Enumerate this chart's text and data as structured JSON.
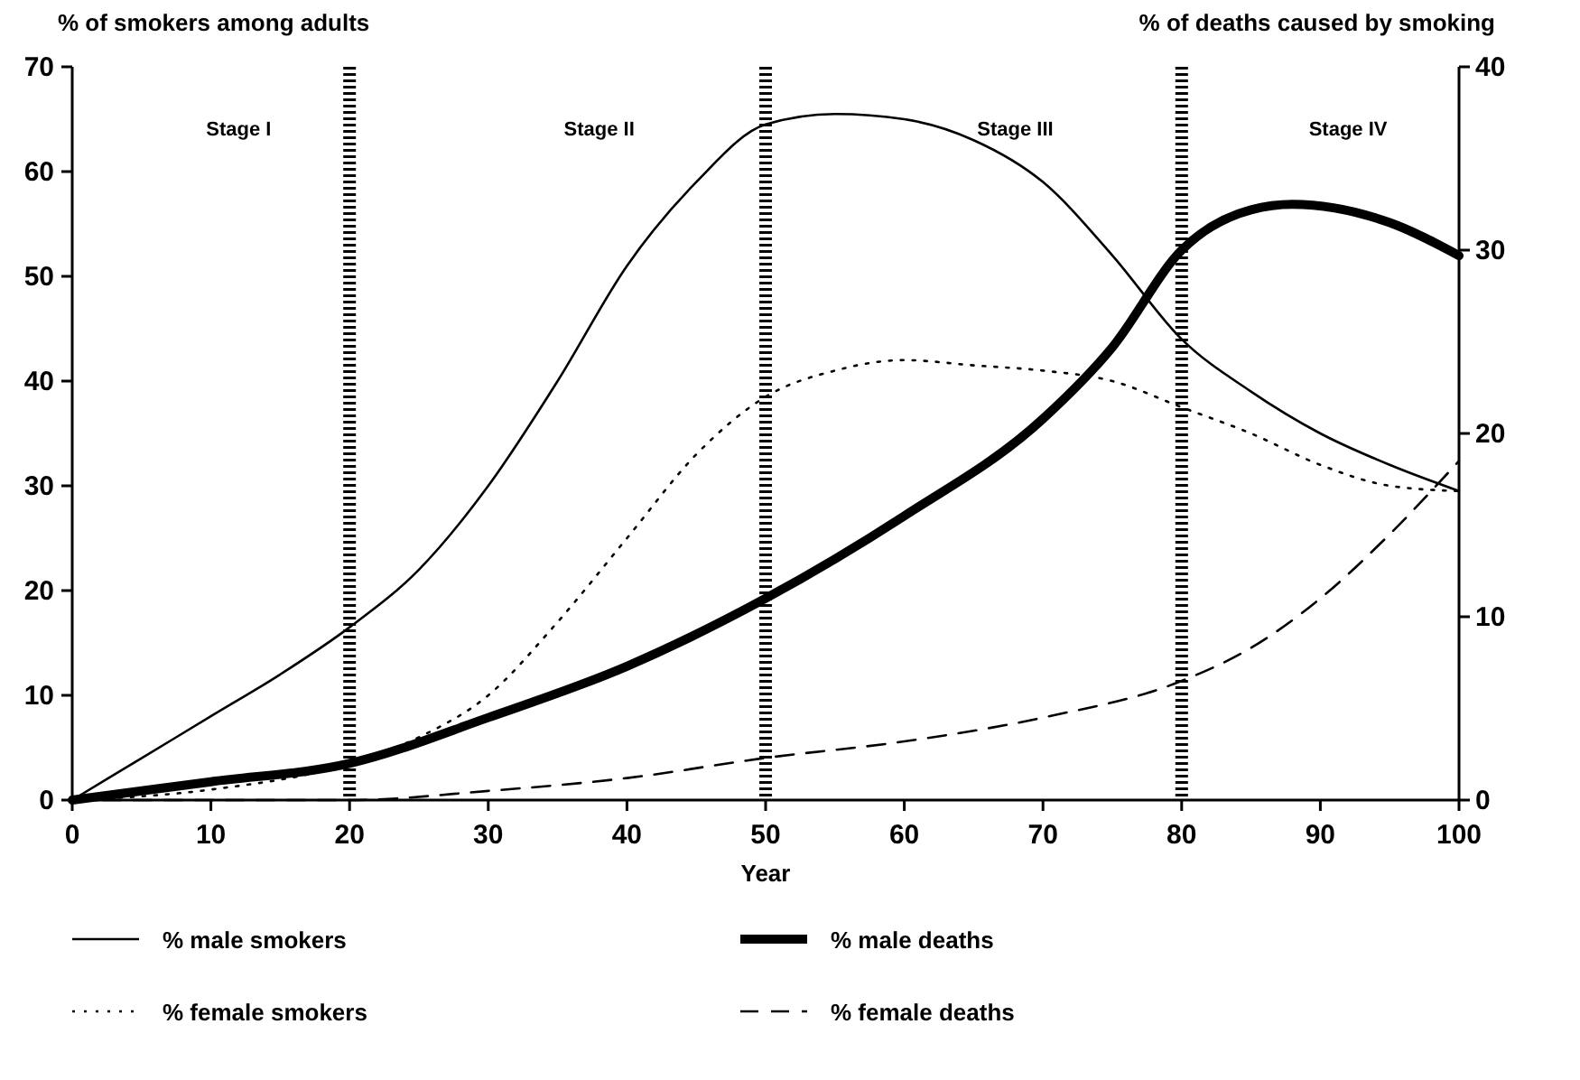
{
  "chart_data": {
    "type": "line",
    "xlabel": "Year",
    "ylabel": "% of smokers among adults",
    "y2label": "% of deaths caused by smoking",
    "xlim": [
      0,
      100
    ],
    "xticks": [
      0,
      10,
      20,
      30,
      40,
      50,
      60,
      70,
      80,
      90,
      100
    ],
    "ylim": [
      0,
      70
    ],
    "yticks": [
      0,
      10,
      20,
      30,
      40,
      50,
      60,
      70
    ],
    "y2lim": [
      0,
      40
    ],
    "y2ticks": [
      0,
      10,
      20,
      30,
      40
    ],
    "grid": false,
    "legend": "bottom",
    "ref_lines": [
      {
        "axis": "x",
        "value": 20,
        "line_style": "dotted"
      },
      {
        "axis": "x",
        "value": 50,
        "line_style": "dotted"
      },
      {
        "axis": "x",
        "value": 80,
        "line_style": "dotted"
      }
    ],
    "annotations": [
      "Stage I",
      "Stage II",
      "Stage III",
      "Stage IV"
    ],
    "series": [
      {
        "name": "% male smokers",
        "color": "#000000",
        "line_style": "solid",
        "x": [
          0,
          5,
          10,
          15,
          20,
          25,
          30,
          35,
          40,
          45,
          50,
          55,
          60,
          65,
          70,
          75,
          80,
          85,
          90,
          95,
          100
        ],
        "values": [
          0,
          4,
          8,
          12,
          16.5,
          22,
          30,
          40,
          51,
          59,
          64.5,
          65.5,
          65,
          63,
          59,
          52,
          44,
          39,
          35,
          32,
          29.5
        ]
      },
      {
        "name": "% female smokers",
        "color": "#000000",
        "line_style": "dotted",
        "x": [
          0,
          10,
          20,
          25,
          30,
          35,
          40,
          45,
          50,
          55,
          60,
          65,
          70,
          75,
          80,
          85,
          90,
          95,
          100
        ],
        "values": [
          0,
          1,
          3.5,
          6,
          10,
          17,
          25,
          33,
          38.5,
          41,
          42,
          41.5,
          41,
          40,
          37.5,
          35,
          32,
          30,
          29.5
        ]
      },
      {
        "name": "% male deaths",
        "color": "#000000",
        "line_style": "solid",
        "axis": "y2",
        "x": [
          0,
          10,
          20,
          30,
          40,
          50,
          60,
          70,
          75,
          80,
          85,
          88,
          95,
          100
        ],
        "values": [
          0,
          1,
          2,
          4.5,
          7.3,
          11,
          15.5,
          20.8,
          24.7,
          30,
          32.2,
          32.5,
          31.5,
          29.7
        ]
      },
      {
        "name": "% female deaths",
        "color": "#000000",
        "line_style": "dashed",
        "axis": "y2",
        "x": [
          0,
          20,
          30,
          40,
          50,
          60,
          70,
          80,
          85,
          90,
          95,
          100
        ],
        "values": [
          0,
          0,
          0.5,
          1.2,
          2.3,
          3.2,
          4.5,
          6.5,
          8.3,
          11,
          14.5,
          18.5
        ]
      }
    ]
  }
}
